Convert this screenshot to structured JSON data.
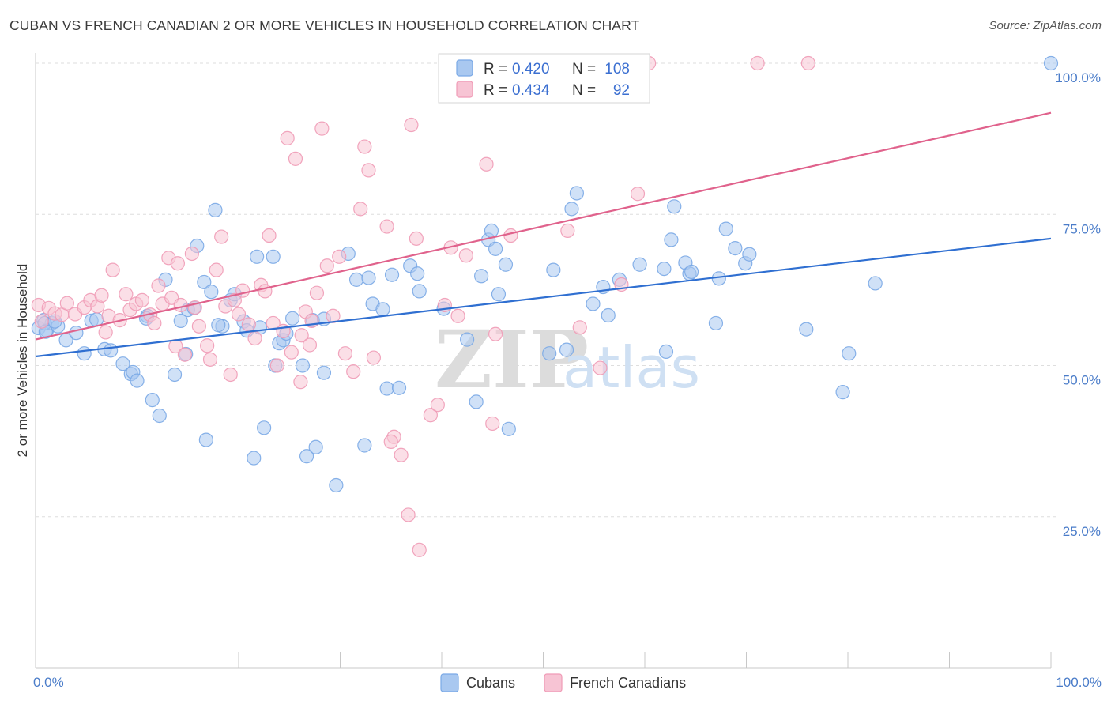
{
  "title": "CUBAN VS FRENCH CANADIAN 2 OR MORE VEHICLES IN HOUSEHOLD CORRELATION CHART",
  "source": "Source: ZipAtlas.com",
  "watermark": {
    "zip": "ZIP",
    "atlas": "atlas"
  },
  "chart_data": {
    "type": "scatter",
    "title": "CUBAN VS FRENCH CANADIAN 2 OR MORE VEHICLES IN HOUSEHOLD CORRELATION CHART",
    "xlabel": "",
    "ylabel": "2 or more Vehicles in Household",
    "xlim": [
      0,
      100
    ],
    "ylim": [
      0,
      103
    ],
    "x_tick_labels": [
      "0.0%",
      "100.0%"
    ],
    "y_ticks": [
      {
        "value": 25,
        "label": "25.0%"
      },
      {
        "value": 50,
        "label": "50.0%"
      },
      {
        "value": 75,
        "label": "75.0%"
      },
      {
        "value": 100,
        "label": "100.0%"
      }
    ],
    "grid": "horizontal dashed",
    "legend_placement": "top-center",
    "series": [
      {
        "name": "Cubans",
        "color": "#7aa9e6",
        "fill": "#a9c8f0",
        "line_color": "#2f6fd1",
        "r_label": "R =",
        "r_value": "0.420",
        "n_label": "N =",
        "n_value": "108",
        "trend": {
          "x": [
            0,
            100
          ],
          "y": [
            51.5,
            71.0
          ]
        },
        "points": [
          [
            0.3,
            56.2
          ],
          [
            0.8,
            57.5
          ],
          [
            1.1,
            55.8
          ],
          [
            1.6,
            57.0
          ],
          [
            2.2,
            56.5
          ],
          [
            3.0,
            54.2
          ],
          [
            4.0,
            55.4
          ],
          [
            4.8,
            52.0
          ],
          [
            5.5,
            57.4
          ],
          [
            6.8,
            52.7
          ],
          [
            7.4,
            52.5
          ],
          [
            8.6,
            50.3
          ],
          [
            9.4,
            48.6
          ],
          [
            9.6,
            48.9
          ],
          [
            10.0,
            47.5
          ],
          [
            11.0,
            58.2
          ],
          [
            10.9,
            57.8
          ],
          [
            11.5,
            44.3
          ],
          [
            12.2,
            41.7
          ],
          [
            12.8,
            64.2
          ],
          [
            13.7,
            48.5
          ],
          [
            14.3,
            57.4
          ],
          [
            14.8,
            51.9
          ],
          [
            15.0,
            59.2
          ],
          [
            15.6,
            59.5
          ],
          [
            15.9,
            69.8
          ],
          [
            16.6,
            63.8
          ],
          [
            16.8,
            37.7
          ],
          [
            17.3,
            62.2
          ],
          [
            17.7,
            75.7
          ],
          [
            18.4,
            56.5
          ],
          [
            19.2,
            60.8
          ],
          [
            19.6,
            61.8
          ],
          [
            20.5,
            57.3
          ],
          [
            20.8,
            55.8
          ],
          [
            21.5,
            34.7
          ],
          [
            21.8,
            68.0
          ],
          [
            22.1,
            56.3
          ],
          [
            22.5,
            39.7
          ],
          [
            23.4,
            68.0
          ],
          [
            23.6,
            50.0
          ],
          [
            24.0,
            53.7
          ],
          [
            24.4,
            54.2
          ],
          [
            24.7,
            55.3
          ],
          [
            25.3,
            57.8
          ],
          [
            26.3,
            50.0
          ],
          [
            26.7,
            35.0
          ],
          [
            27.3,
            57.5
          ],
          [
            27.6,
            36.5
          ],
          [
            28.4,
            57.7
          ],
          [
            28.4,
            48.8
          ],
          [
            29.6,
            30.2
          ],
          [
            30.8,
            68.5
          ],
          [
            31.6,
            64.2
          ],
          [
            32.4,
            36.8
          ],
          [
            32.8,
            64.5
          ],
          [
            33.2,
            60.2
          ],
          [
            34.2,
            59.3
          ],
          [
            34.6,
            46.2
          ],
          [
            35.1,
            65.0
          ],
          [
            35.8,
            46.3
          ],
          [
            36.9,
            66.5
          ],
          [
            37.6,
            65.2
          ],
          [
            37.8,
            62.3
          ],
          [
            40.2,
            59.4
          ],
          [
            42.5,
            54.3
          ],
          [
            43.4,
            44.0
          ],
          [
            43.9,
            64.8
          ],
          [
            44.6,
            70.8
          ],
          [
            44.9,
            72.3
          ],
          [
            45.3,
            69.3
          ],
          [
            45.6,
            61.8
          ],
          [
            46.3,
            66.7
          ],
          [
            46.6,
            39.5
          ],
          [
            50.6,
            52.0
          ],
          [
            51.0,
            65.8
          ],
          [
            52.3,
            52.6
          ],
          [
            52.8,
            75.9
          ],
          [
            53.3,
            78.5
          ],
          [
            54.9,
            60.2
          ],
          [
            55.9,
            63.0
          ],
          [
            56.4,
            58.3
          ],
          [
            57.5,
            64.2
          ],
          [
            59.5,
            66.7
          ],
          [
            61.9,
            66.0
          ],
          [
            62.1,
            52.3
          ],
          [
            62.6,
            70.8
          ],
          [
            62.9,
            76.3
          ],
          [
            64.0,
            67.0
          ],
          [
            64.4,
            65.2
          ],
          [
            64.6,
            65.5
          ],
          [
            67.0,
            57.0
          ],
          [
            67.3,
            64.4
          ],
          [
            68.0,
            72.6
          ],
          [
            68.9,
            69.4
          ],
          [
            69.9,
            66.9
          ],
          [
            70.3,
            68.4
          ],
          [
            75.9,
            56.0
          ],
          [
            79.5,
            45.6
          ],
          [
            80.1,
            52.0
          ],
          [
            82.7,
            63.6
          ],
          [
            100.0,
            100.0
          ],
          [
            0.9,
            57.0
          ],
          [
            1.9,
            57.3
          ],
          [
            1.0,
            55.6
          ],
          [
            6.0,
            57.6
          ],
          [
            18.0,
            56.7
          ]
        ]
      },
      {
        "name": "French Canadians",
        "color": "#f09bb6",
        "fill": "#f7c4d4",
        "line_color": "#e0628c",
        "r_label": "R =",
        "r_value": "0.434",
        "n_label": "N =",
        "n_value": "92",
        "trend": {
          "x": [
            0,
            100
          ],
          "y": [
            54.3,
            91.8
          ]
        },
        "points": [
          [
            0.3,
            60.0
          ],
          [
            0.6,
            57.3
          ],
          [
            1.3,
            59.5
          ],
          [
            1.9,
            58.6
          ],
          [
            2.6,
            58.4
          ],
          [
            3.1,
            60.3
          ],
          [
            3.9,
            58.5
          ],
          [
            4.8,
            59.6
          ],
          [
            5.4,
            60.8
          ],
          [
            6.1,
            59.8
          ],
          [
            6.5,
            61.6
          ],
          [
            6.9,
            55.5
          ],
          [
            7.2,
            58.2
          ],
          [
            7.6,
            65.8
          ],
          [
            8.3,
            57.5
          ],
          [
            8.9,
            61.8
          ],
          [
            9.3,
            59.2
          ],
          [
            9.9,
            60.2
          ],
          [
            10.5,
            60.8
          ],
          [
            11.3,
            58.4
          ],
          [
            11.7,
            57.0
          ],
          [
            12.1,
            63.2
          ],
          [
            12.5,
            60.2
          ],
          [
            13.1,
            67.8
          ],
          [
            13.4,
            61.2
          ],
          [
            13.8,
            53.2
          ],
          [
            14.3,
            60.0
          ],
          [
            14.7,
            51.8
          ],
          [
            15.4,
            68.5
          ],
          [
            15.7,
            59.6
          ],
          [
            16.1,
            56.5
          ],
          [
            16.9,
            53.3
          ],
          [
            17.2,
            51.0
          ],
          [
            17.8,
            65.8
          ],
          [
            18.3,
            71.3
          ],
          [
            18.7,
            59.8
          ],
          [
            19.2,
            48.5
          ],
          [
            19.6,
            60.8
          ],
          [
            20.0,
            58.5
          ],
          [
            20.4,
            62.4
          ],
          [
            21.0,
            56.8
          ],
          [
            21.6,
            54.5
          ],
          [
            22.2,
            63.3
          ],
          [
            22.6,
            62.3
          ],
          [
            23.0,
            71.5
          ],
          [
            23.4,
            57.0
          ],
          [
            23.8,
            50.0
          ],
          [
            24.4,
            55.7
          ],
          [
            24.8,
            87.6
          ],
          [
            25.2,
            52.2
          ],
          [
            25.6,
            84.2
          ],
          [
            26.1,
            47.3
          ],
          [
            26.6,
            58.9
          ],
          [
            27.2,
            57.4
          ],
          [
            27.7,
            62.0
          ],
          [
            28.2,
            89.2
          ],
          [
            28.7,
            66.5
          ],
          [
            29.3,
            58.2
          ],
          [
            29.9,
            68.0
          ],
          [
            30.5,
            52.0
          ],
          [
            31.3,
            49.0
          ],
          [
            32.0,
            75.9
          ],
          [
            32.4,
            86.2
          ],
          [
            32.8,
            82.3
          ],
          [
            33.3,
            51.3
          ],
          [
            34.6,
            73.0
          ],
          [
            35.3,
            38.2
          ],
          [
            35.0,
            37.4
          ],
          [
            36.0,
            35.2
          ],
          [
            36.7,
            25.3
          ],
          [
            37.5,
            71.0
          ],
          [
            37.8,
            19.5
          ],
          [
            38.9,
            41.8
          ],
          [
            39.6,
            43.5
          ],
          [
            40.3,
            60.0
          ],
          [
            40.9,
            69.5
          ],
          [
            41.6,
            58.2
          ],
          [
            42.4,
            68.2
          ],
          [
            44.4,
            83.3
          ],
          [
            45.0,
            40.4
          ],
          [
            45.3,
            55.2
          ],
          [
            46.8,
            71.5
          ],
          [
            50.4,
            100.0
          ],
          [
            50.9,
            100.0
          ],
          [
            52.4,
            72.3
          ],
          [
            53.6,
            56.3
          ],
          [
            55.6,
            49.6
          ],
          [
            57.7,
            63.4
          ],
          [
            59.3,
            78.4
          ],
          [
            60.4,
            100.0
          ],
          [
            71.1,
            100.0
          ],
          [
            76.1,
            100.0
          ],
          [
            26.2,
            55.0
          ],
          [
            27.0,
            53.4
          ],
          [
            37.0,
            89.8
          ],
          [
            14.0,
            66.9
          ]
        ]
      }
    ]
  }
}
